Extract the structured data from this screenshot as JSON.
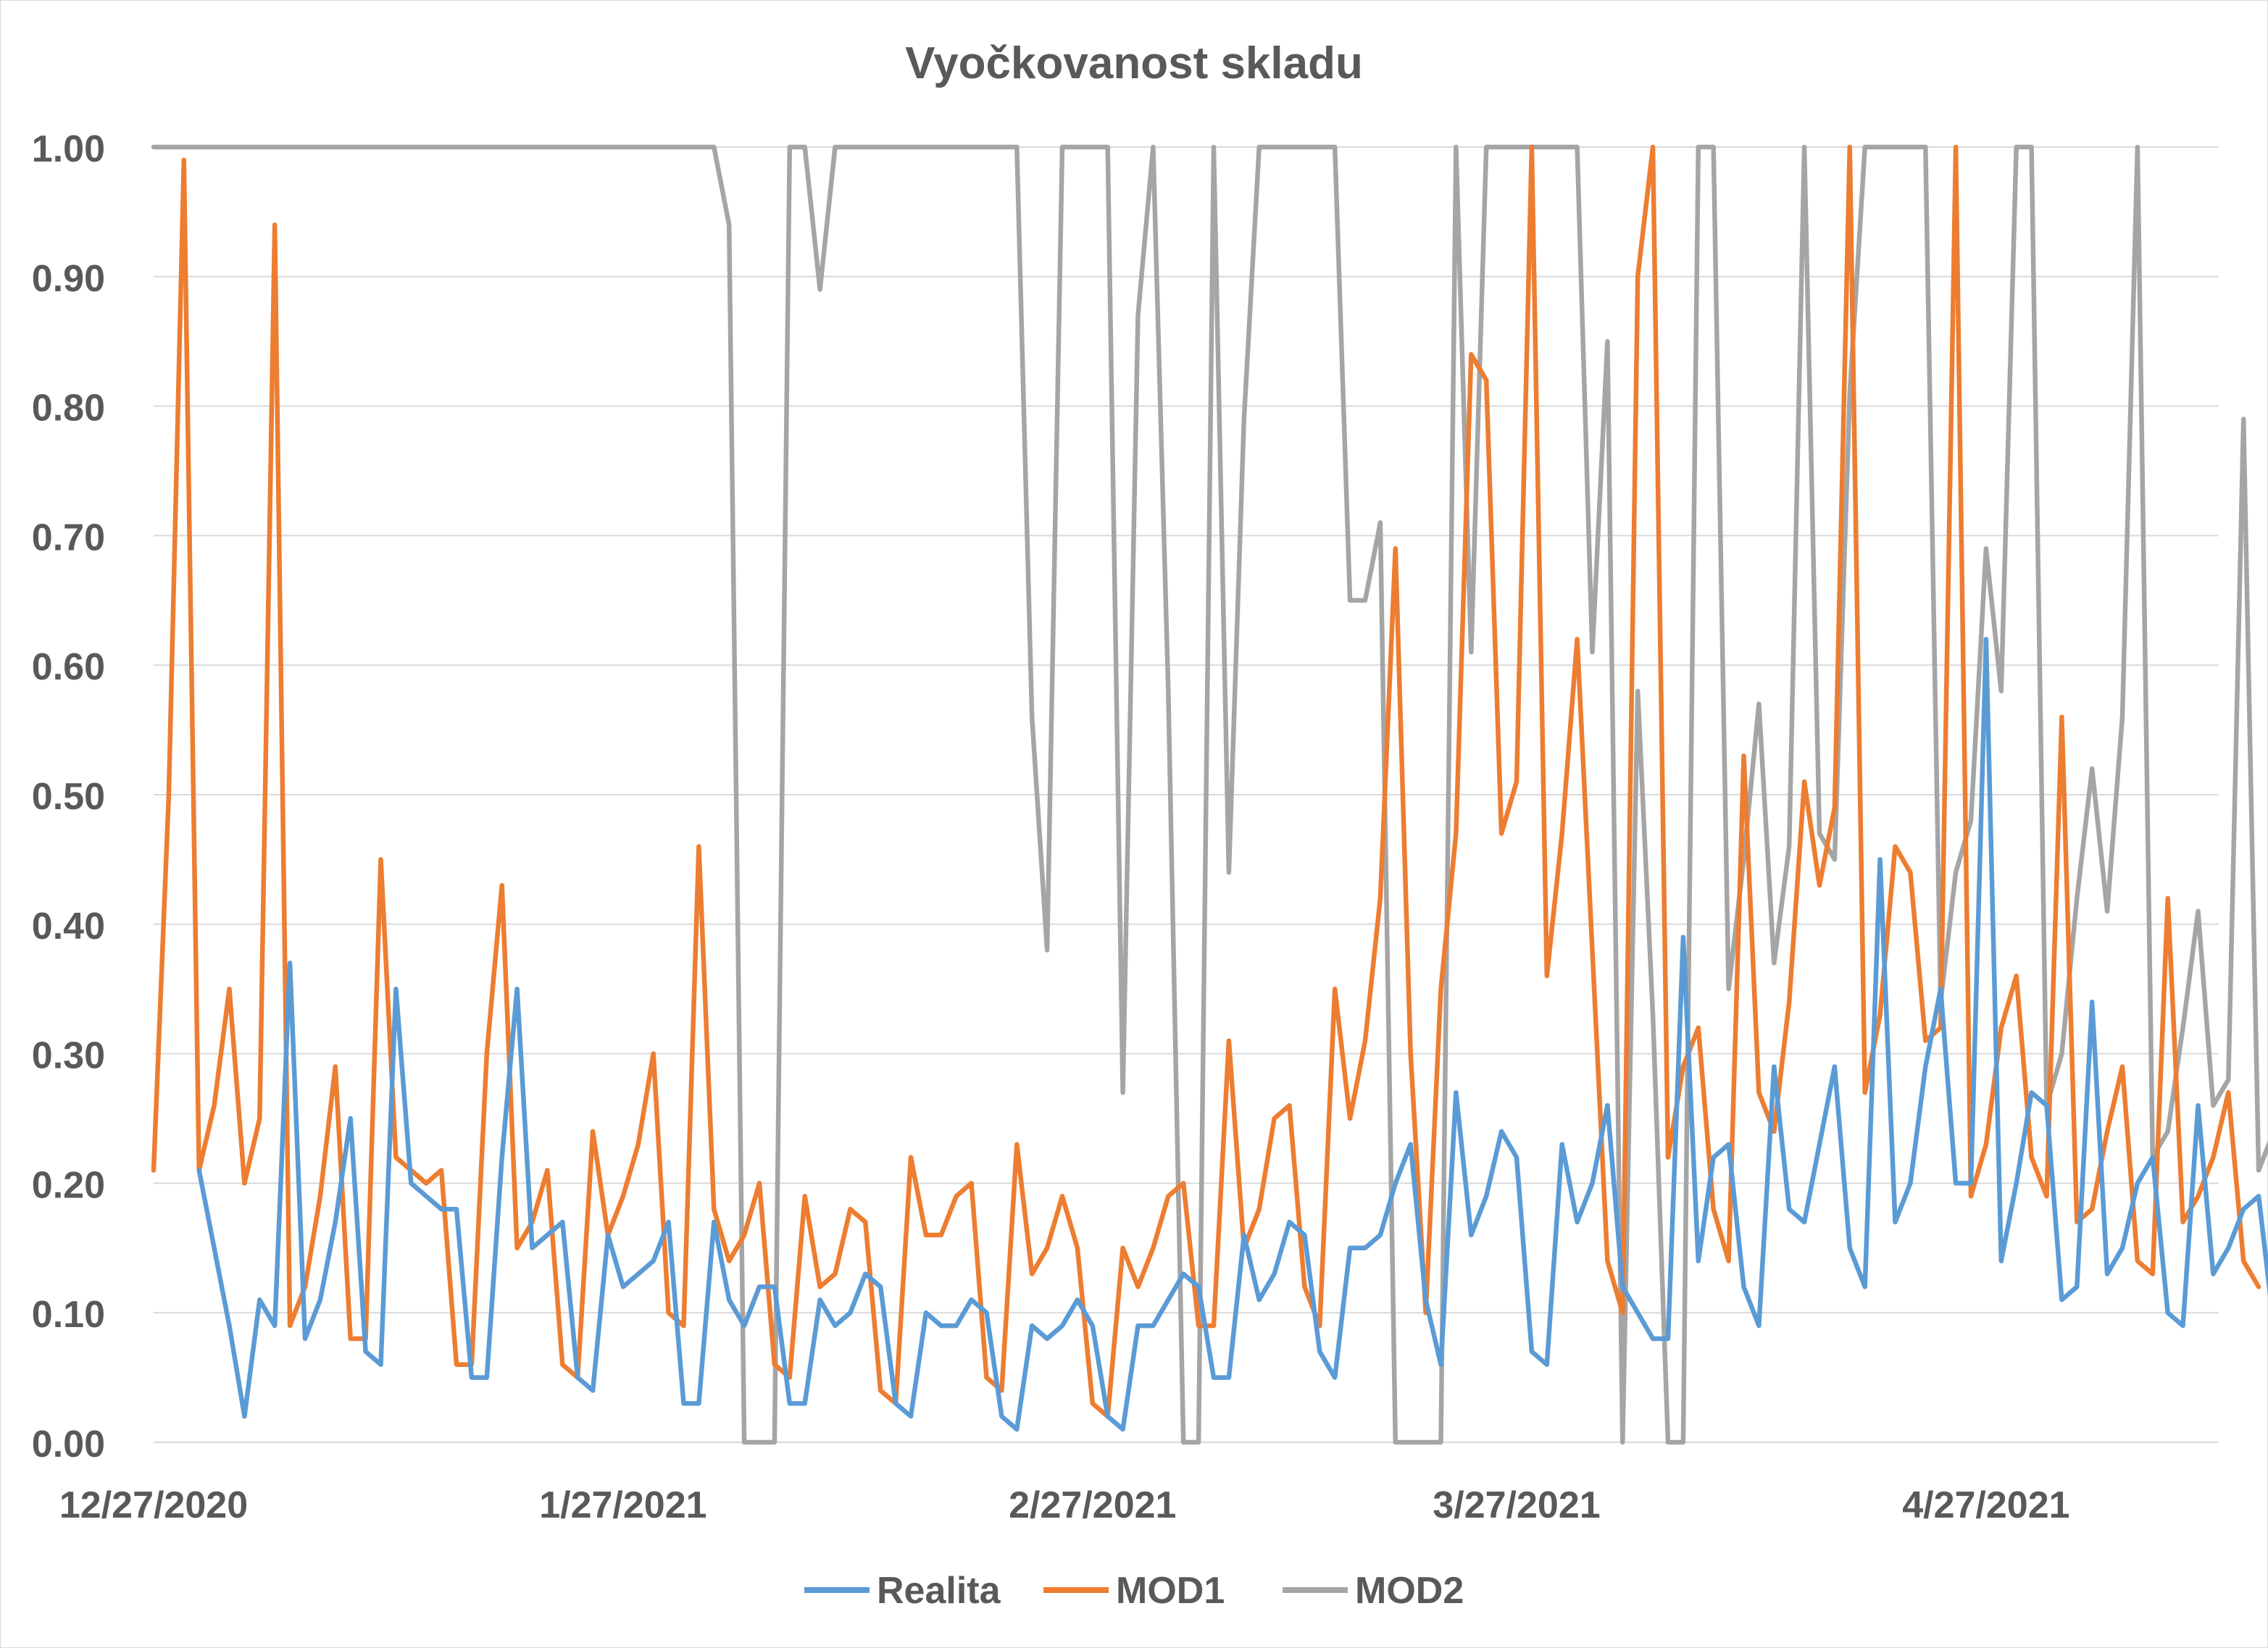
{
  "chart_data": {
    "type": "line",
    "title": "Vyočkovanost skladu",
    "xlabel": "",
    "ylabel": "",
    "x_start": "2020-12-27",
    "x_step_days": 1,
    "x_tick_labels": [
      "12/27/2020",
      "1/27/2021",
      "2/27/2021",
      "3/27/2021",
      "4/27/2021"
    ],
    "x_tick_dates": [
      "2020-12-27",
      "2021-01-27",
      "2021-02-27",
      "2021-03-27",
      "2021-04-27"
    ],
    "y_tick_labels": [
      "0.00",
      "0.10",
      "0.20",
      "0.30",
      "0.40",
      "0.50",
      "0.60",
      "0.70",
      "0.80",
      "0.90",
      "1.00"
    ],
    "ylim": [
      0,
      1
    ],
    "grid": true,
    "legend_position": "bottom",
    "series": [
      {
        "name": "Realita",
        "color": "#5b9bd5",
        "start_index": 3,
        "values": [
          0.21,
          0.15,
          0.09,
          0.02,
          0.11,
          0.09,
          0.37,
          0.08,
          0.11,
          0.17,
          0.25,
          0.07,
          0.06,
          0.35,
          0.2,
          0.19,
          0.18,
          0.18,
          0.05,
          0.05,
          0.22,
          0.35,
          0.15,
          0.16,
          0.17,
          0.05,
          0.04,
          0.16,
          0.12,
          0.13,
          0.14,
          0.17,
          0.03,
          0.03,
          0.17,
          0.11,
          0.09,
          0.12,
          0.12,
          0.03,
          0.03,
          0.11,
          0.09,
          0.1,
          0.13,
          0.12,
          0.03,
          0.02,
          0.1,
          0.09,
          0.09,
          0.11,
          0.1,
          0.02,
          0.01,
          0.09,
          0.08,
          0.09,
          0.11,
          0.09,
          0.02,
          0.01,
          0.09,
          0.09,
          0.11,
          0.13,
          0.12,
          0.05,
          0.05,
          0.16,
          0.11,
          0.13,
          0.17,
          0.16,
          0.07,
          0.05,
          0.15,
          0.15,
          0.16,
          0.2,
          0.23,
          0.11,
          0.06,
          0.27,
          0.16,
          0.19,
          0.24,
          0.22,
          0.07,
          0.06,
          0.23,
          0.17,
          0.2,
          0.26,
          0.12,
          0.1,
          0.08,
          0.08,
          0.39,
          0.14,
          0.22,
          0.23,
          0.12,
          0.09,
          0.29,
          0.18,
          0.17,
          0.23,
          0.29,
          0.15,
          0.12,
          0.45,
          0.17,
          0.2,
          0.29,
          0.35,
          0.2,
          0.2,
          0.62,
          0.14,
          0.2,
          0.27,
          0.26,
          0.11,
          0.12,
          0.34,
          0.13,
          0.15,
          0.2,
          0.22,
          0.1,
          0.09,
          0.26,
          0.13,
          0.15,
          0.18,
          0.19,
          0.09,
          0.08
        ]
      },
      {
        "name": "MOD1",
        "color": "#ed7d31",
        "start_index": 0,
        "values": [
          0.21,
          0.5,
          0.99,
          0.21,
          0.26,
          0.35,
          0.2,
          0.25,
          0.94,
          0.09,
          0.12,
          0.19,
          0.29,
          0.08,
          0.08,
          0.45,
          0.22,
          0.21,
          0.2,
          0.21,
          0.06,
          0.06,
          0.3,
          0.43,
          0.15,
          0.17,
          0.21,
          0.06,
          0.05,
          0.24,
          0.16,
          0.19,
          0.23,
          0.3,
          0.1,
          0.09,
          0.46,
          0.18,
          0.14,
          0.16,
          0.2,
          0.06,
          0.05,
          0.19,
          0.12,
          0.13,
          0.18,
          0.17,
          0.04,
          0.03,
          0.22,
          0.16,
          0.16,
          0.19,
          0.2,
          0.05,
          0.04,
          0.23,
          0.13,
          0.15,
          0.19,
          0.15,
          0.03,
          0.02,
          0.15,
          0.12,
          0.15,
          0.19,
          0.2,
          0.09,
          0.09,
          0.31,
          0.15,
          0.18,
          0.25,
          0.26,
          0.12,
          0.09,
          0.35,
          0.25,
          0.31,
          0.42,
          0.69,
          0.3,
          0.1,
          0.35,
          0.47,
          0.84,
          0.82,
          0.47,
          0.51,
          1.0,
          0.36,
          0.47,
          0.62,
          0.38,
          0.14,
          0.1,
          0.9,
          1.0,
          0.22,
          0.29,
          0.32,
          0.18,
          0.14,
          0.53,
          0.27,
          0.24,
          0.34,
          0.51,
          0.43,
          0.49,
          1.0,
          0.27,
          0.33,
          0.46,
          0.44,
          0.31,
          0.32,
          1.0,
          0.19,
          0.23,
          0.32,
          0.36,
          0.22,
          0.19,
          0.56,
          0.17,
          0.18,
          0.24,
          0.29,
          0.14,
          0.13,
          0.42,
          0.17,
          0.19,
          0.22,
          0.27,
          0.14,
          0.12
        ]
      },
      {
        "name": "MOD2",
        "color": "#a5a5a5",
        "start_index": 0,
        "values": [
          1.0,
          1.0,
          1.0,
          1.0,
          1.0,
          1.0,
          1.0,
          1.0,
          1.0,
          1.0,
          1.0,
          1.0,
          1.0,
          1.0,
          1.0,
          1.0,
          1.0,
          1.0,
          1.0,
          1.0,
          1.0,
          1.0,
          1.0,
          1.0,
          1.0,
          1.0,
          1.0,
          1.0,
          1.0,
          1.0,
          1.0,
          1.0,
          1.0,
          1.0,
          1.0,
          1.0,
          1.0,
          1.0,
          0.94,
          0.0,
          0.0,
          0.0,
          1.0,
          1.0,
          0.89,
          1.0,
          1.0,
          1.0,
          1.0,
          1.0,
          1.0,
          1.0,
          1.0,
          1.0,
          1.0,
          1.0,
          1.0,
          1.0,
          0.56,
          0.38,
          1.0,
          1.0,
          1.0,
          1.0,
          0.27,
          0.87,
          1.0,
          0.58,
          0.0,
          0.0,
          1.0,
          0.44,
          0.79,
          1.0,
          1.0,
          1.0,
          1.0,
          1.0,
          1.0,
          0.65,
          0.65,
          0.71,
          0.0,
          0.0,
          0.0,
          0.0,
          1.0,
          0.61,
          1.0,
          1.0,
          1.0,
          1.0,
          1.0,
          1.0,
          1.0,
          0.61,
          0.85,
          0.0,
          0.58,
          0.33,
          0.0,
          0.0,
          1.0,
          1.0,
          0.35,
          0.45,
          0.57,
          0.37,
          0.46,
          1.0,
          0.47,
          0.45,
          0.81,
          1.0,
          1.0,
          1.0,
          1.0,
          1.0,
          0.34,
          0.44,
          0.48,
          0.69,
          0.58,
          1.0,
          1.0,
          0.26,
          0.3,
          0.42,
          0.52,
          0.41,
          0.56,
          1.0,
          0.22,
          0.24,
          0.32,
          0.41,
          0.26,
          0.28,
          0.79,
          0.21,
          0.24,
          0.3,
          0.38,
          0.23,
          0.24
        ]
      }
    ]
  }
}
